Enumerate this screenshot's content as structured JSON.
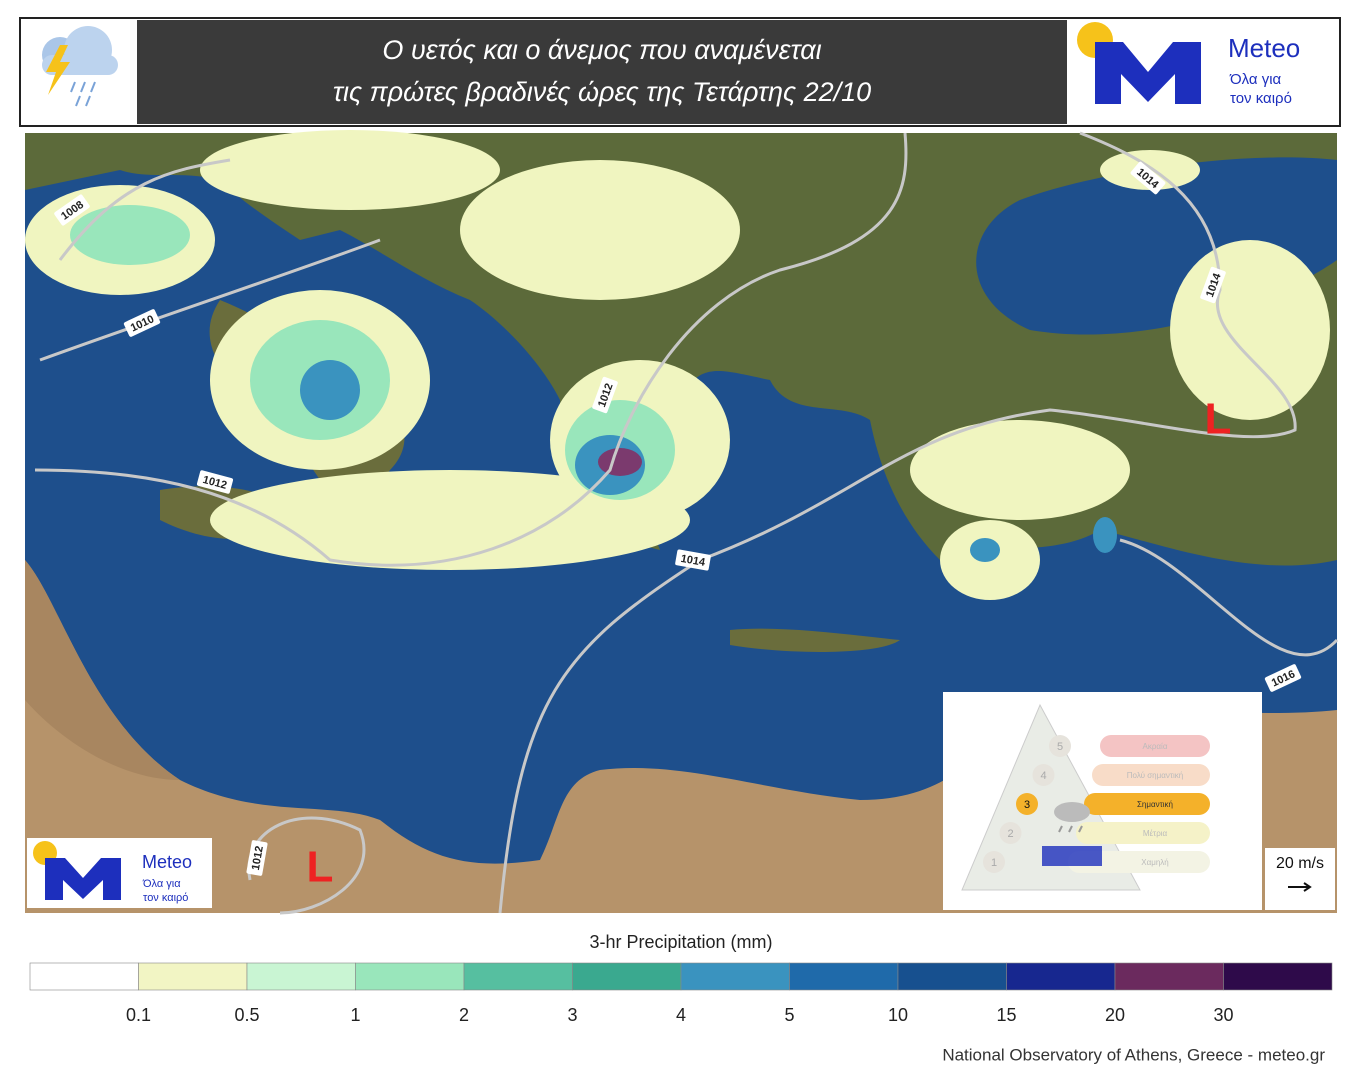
{
  "header": {
    "title_lines": [
      "Ο υετός και ο άνεμος που αναμένεται",
      "τις πρώτες βραδινές ώρες της Τετάρτης 22/10"
    ]
  },
  "logo": {
    "name": "Meteo",
    "tagline": [
      "Όλα για",
      "τον καιρό"
    ]
  },
  "map": {
    "isobars": [
      1008,
      1010,
      1012,
      1012,
      1014,
      1014,
      1014,
      1016,
      1012
    ],
    "lows": [
      "L",
      "L"
    ],
    "wind_scale": "20 m/s"
  },
  "inset": {
    "levels": [
      {
        "number": 5,
        "label": "Ακραία"
      },
      {
        "number": 4,
        "label": "Πολύ σημαντική"
      },
      {
        "number": 3,
        "label": "Σημαντική"
      },
      {
        "number": 2,
        "label": "Μέτρια"
      },
      {
        "number": 1,
        "label": "Χαμηλή"
      }
    ]
  },
  "colorbar": {
    "title": "3-hr Precipitation (mm)",
    "colors": [
      "#ffffff",
      "#f2f5c4",
      "#c9f5d3",
      "#99e6bb",
      "#56bfa0",
      "#3aa98f",
      "#3a93bf",
      "#1f6aaa",
      "#17508f",
      "#17278f",
      "#6b2a5e",
      "#2e0a4a"
    ],
    "ticks": [
      0.1,
      0.5,
      1,
      2,
      3,
      4,
      5,
      10,
      15,
      20,
      30
    ]
  },
  "footer": "National Observatory of Athens, Greece - meteo.gr"
}
